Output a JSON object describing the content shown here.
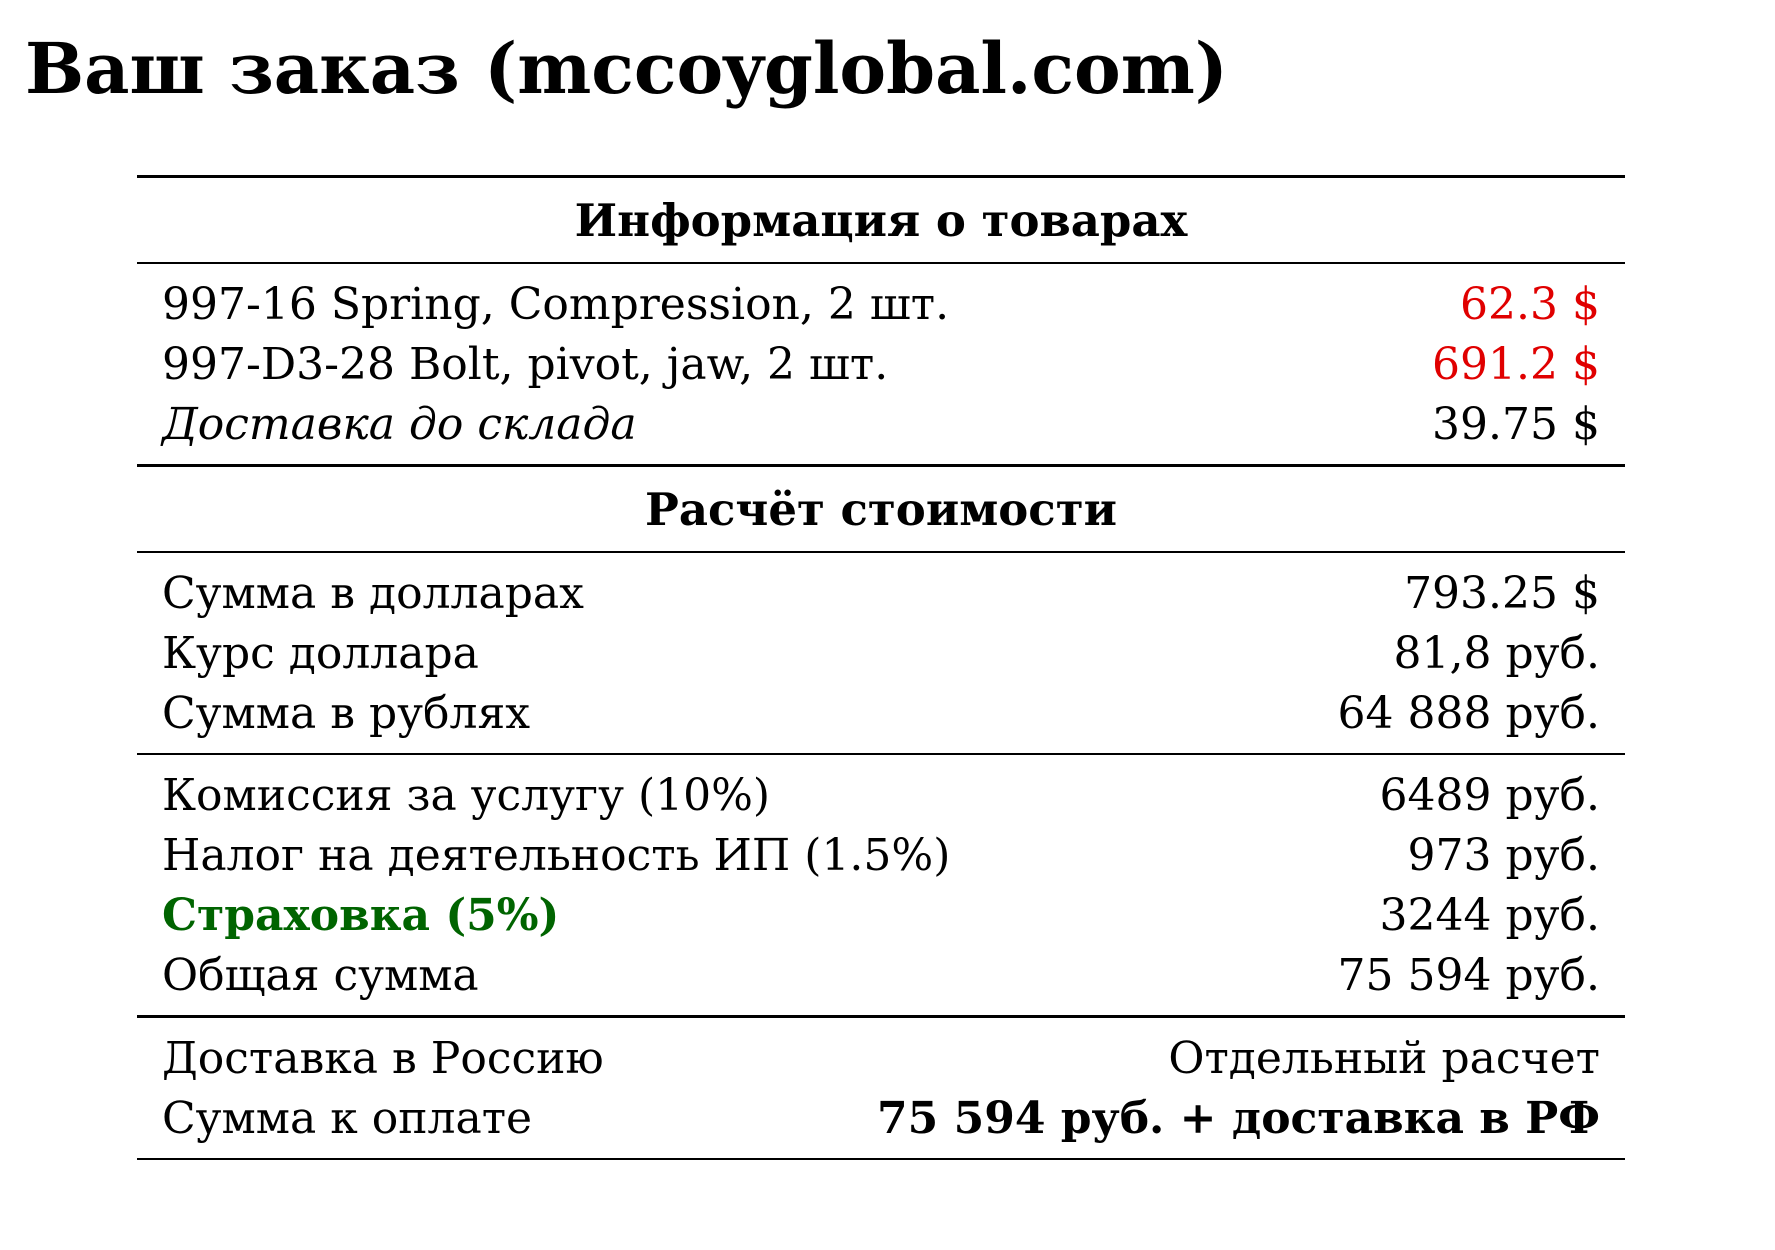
{
  "title": "Ваш заказ (mccoyglobal.com)",
  "colors": {
    "price_red": "#e00000",
    "insurance_green": "#006400",
    "text": "#000000"
  },
  "products_section": {
    "header": "Информация о товарах",
    "items": [
      {
        "label": "997-16 Spring, Compression, 2 шт.",
        "value": "62.3 $"
      },
      {
        "label": "997-D3-28 Bolt, pivot, jaw, 2 шт.",
        "value": "691.2 $"
      },
      {
        "label": "Доставка до склада",
        "value": "39.75 $"
      }
    ]
  },
  "cost_section": {
    "header": "Расчёт стоимости",
    "conversion": [
      {
        "label": "Сумма в долларах",
        "value": "793.25 $"
      },
      {
        "label": "Курс доллара",
        "value": "81,8 руб."
      },
      {
        "label": "Сумма в рублях",
        "value": "64 888 руб."
      }
    ],
    "fees": [
      {
        "label": "Комиссия за услугу (10%)",
        "value": "6489 руб."
      },
      {
        "label": "Налог на деятельность ИП (1.5%)",
        "value": "973 руб."
      },
      {
        "label": "Страховка (5%)",
        "value": "3244 руб."
      },
      {
        "label": "Общая сумма",
        "value": "75 594 руб."
      }
    ],
    "final": [
      {
        "label": "Доставка в Россию",
        "value": "Отдельный расчет"
      },
      {
        "label": "Сумма к оплате",
        "value": "75 594 руб. + доставка в РФ"
      }
    ]
  }
}
